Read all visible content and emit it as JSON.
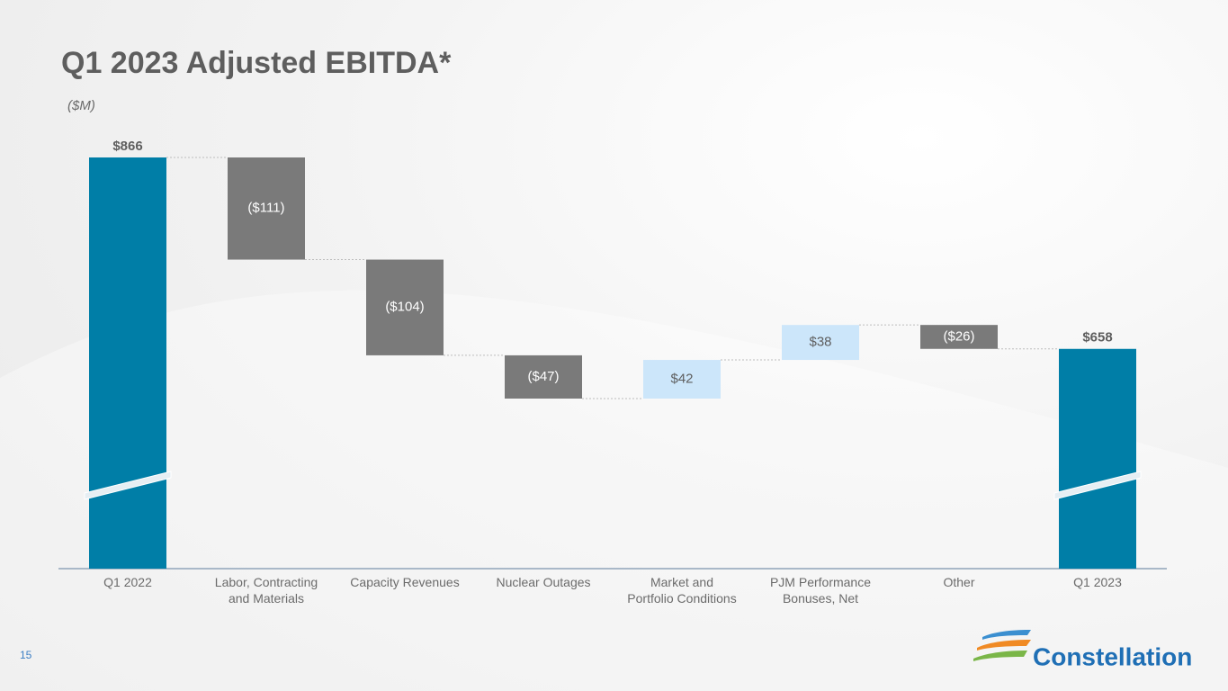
{
  "chart_data": {
    "type": "waterfall",
    "title": "Q1 2023 Adjusted EBITDA*",
    "subtitle": "($M)",
    "categories": [
      "Q1 2022",
      "Labor, Contracting\nand Materials",
      "Capacity Revenues",
      "Nuclear Outages",
      "Market and\nPortfolio Conditions",
      "PJM Performance\nBonuses, Net",
      "Other",
      "Q1 2023"
    ],
    "values": [
      866,
      -111,
      -104,
      -47,
      42,
      38,
      -26,
      658
    ],
    "value_labels": [
      "$866",
      "($111)",
      "($104)",
      "($47)",
      "$42",
      "$38",
      "($26)",
      "$658"
    ],
    "colors": {
      "total": "#007ea7",
      "decrease": "#7a7a7a",
      "increase": "#cce6fa"
    }
  },
  "page": {
    "number": "15",
    "logo": "Constellation"
  }
}
